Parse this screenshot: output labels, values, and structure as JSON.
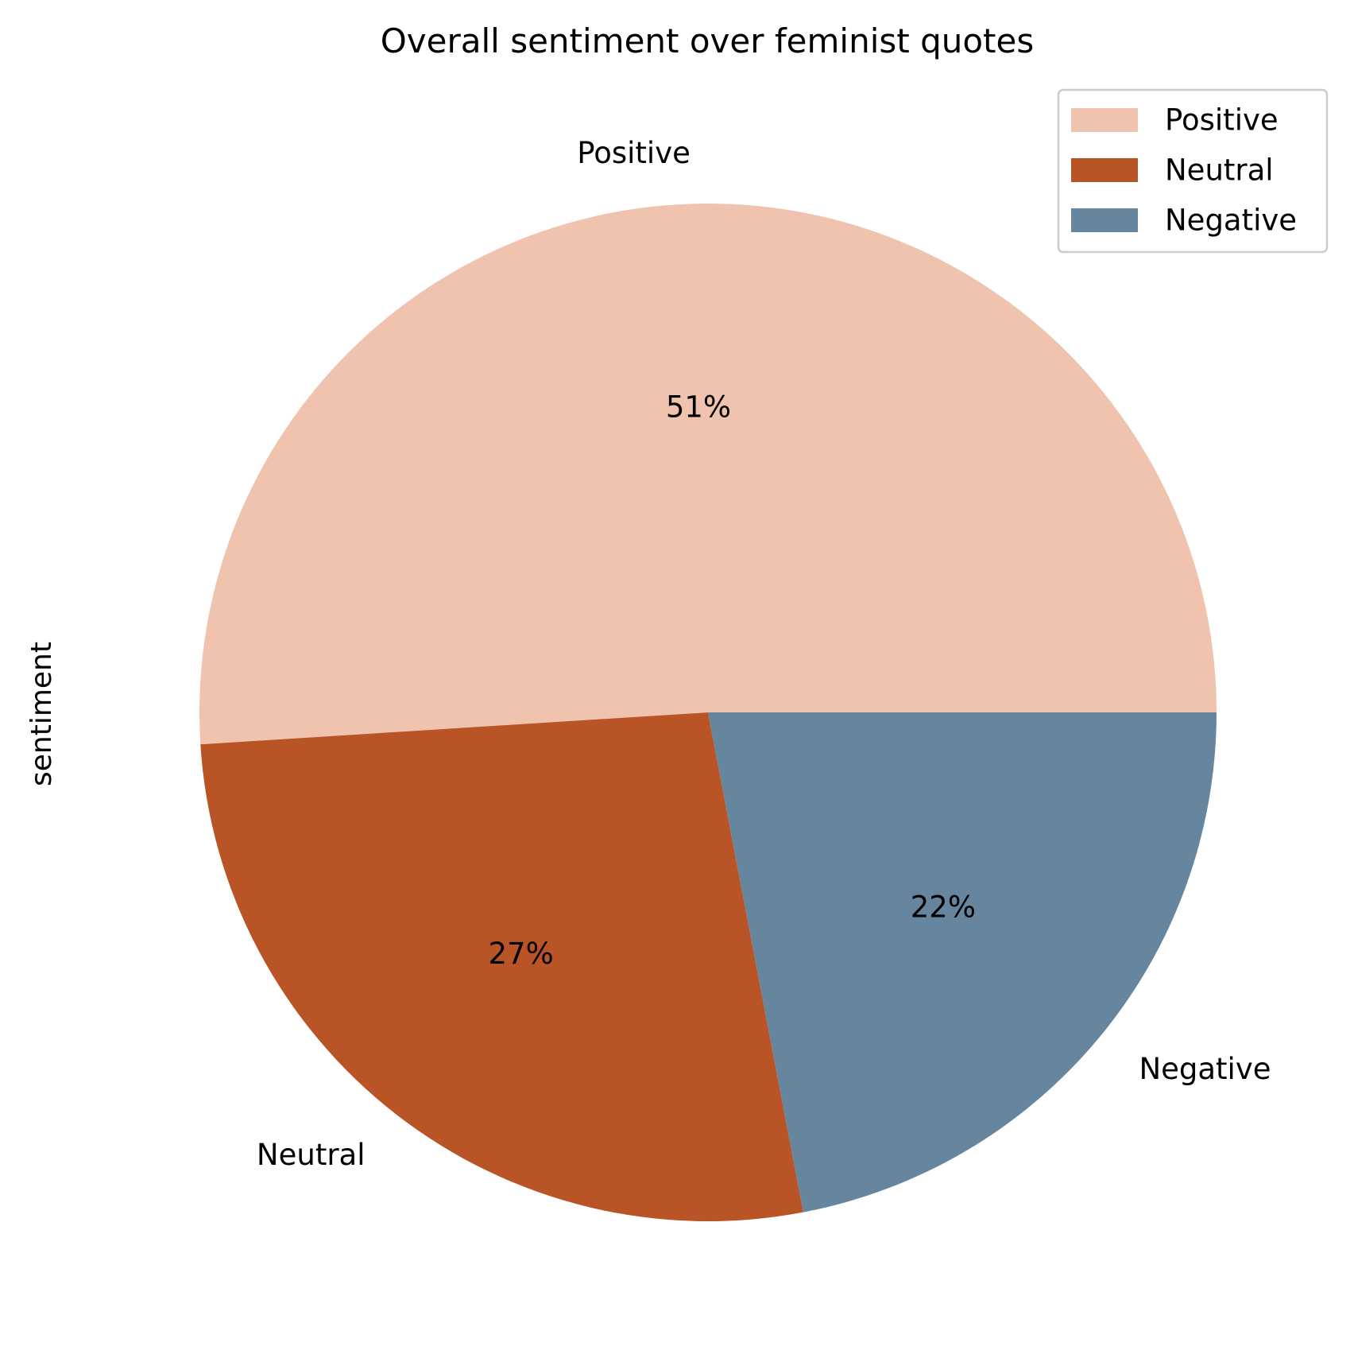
{
  "chart_data": {
    "type": "pie",
    "title": "Overall sentiment over feminist quotes",
    "ylabel": "sentiment",
    "slices": [
      {
        "label": "Positive",
        "value": 51,
        "pct_label": "51%",
        "color": "#F0C3AF"
      },
      {
        "label": "Neutral",
        "value": 27,
        "pct_label": "27%",
        "color": "#B95426"
      },
      {
        "label": "Negative",
        "value": 22,
        "pct_label": "22%",
        "color": "#66859F"
      }
    ],
    "start_angle_deg": 0,
    "direction": "counterclockwise",
    "legend": {
      "position": "top-right",
      "entries": [
        "Positive",
        "Neutral",
        "Negative"
      ]
    }
  }
}
